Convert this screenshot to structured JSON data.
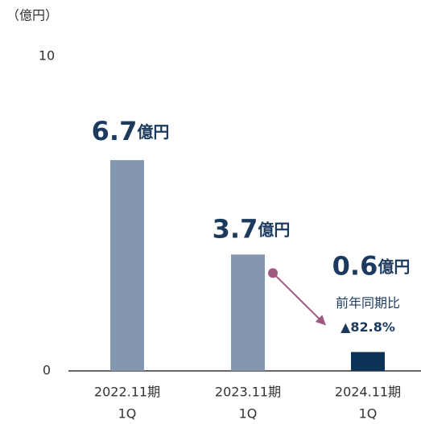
{
  "chart_data": {
    "type": "bar",
    "y_axis_label": "（億円）",
    "categories": [
      [
        "2022.11期",
        "1Q"
      ],
      [
        "2023.11期",
        "1Q"
      ],
      [
        "2024.11期",
        "1Q"
      ]
    ],
    "values": [
      6.7,
      3.7,
      0.6
    ],
    "unit": "億円",
    "colors": [
      "#8497b0",
      "#8497b0",
      "#0e3358"
    ],
    "ylim": [
      0,
      10
    ],
    "yticks": [
      0,
      10
    ],
    "grid": false,
    "annotation": {
      "label": "前年同期比",
      "value": "▲82.8%"
    }
  }
}
